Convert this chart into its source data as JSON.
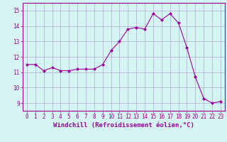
{
  "x": [
    0,
    1,
    2,
    3,
    4,
    5,
    6,
    7,
    8,
    9,
    10,
    11,
    12,
    13,
    14,
    15,
    16,
    17,
    18,
    19,
    20,
    21,
    22,
    23
  ],
  "y": [
    11.5,
    11.5,
    11.1,
    11.3,
    11.1,
    11.1,
    11.2,
    11.2,
    11.2,
    11.5,
    12.4,
    13.0,
    13.8,
    13.9,
    13.8,
    14.8,
    14.4,
    14.8,
    14.2,
    12.6,
    10.7,
    9.3,
    9.0,
    9.1
  ],
  "line_color": "#990099",
  "marker": "D",
  "marker_size": 2.0,
  "xlabel": "Windchill (Refroidissement éolien,°C)",
  "ylabel_ticks": [
    9,
    10,
    11,
    12,
    13,
    14,
    15
  ],
  "xlim": [
    -0.5,
    23.5
  ],
  "ylim": [
    8.5,
    15.5
  ],
  "background_color": "#d5f5f5",
  "grid_color": "#aaaacc",
  "xlabel_color": "#990099",
  "tick_color": "#990099",
  "label_fontsize": 6.5,
  "tick_fontsize": 5.5
}
